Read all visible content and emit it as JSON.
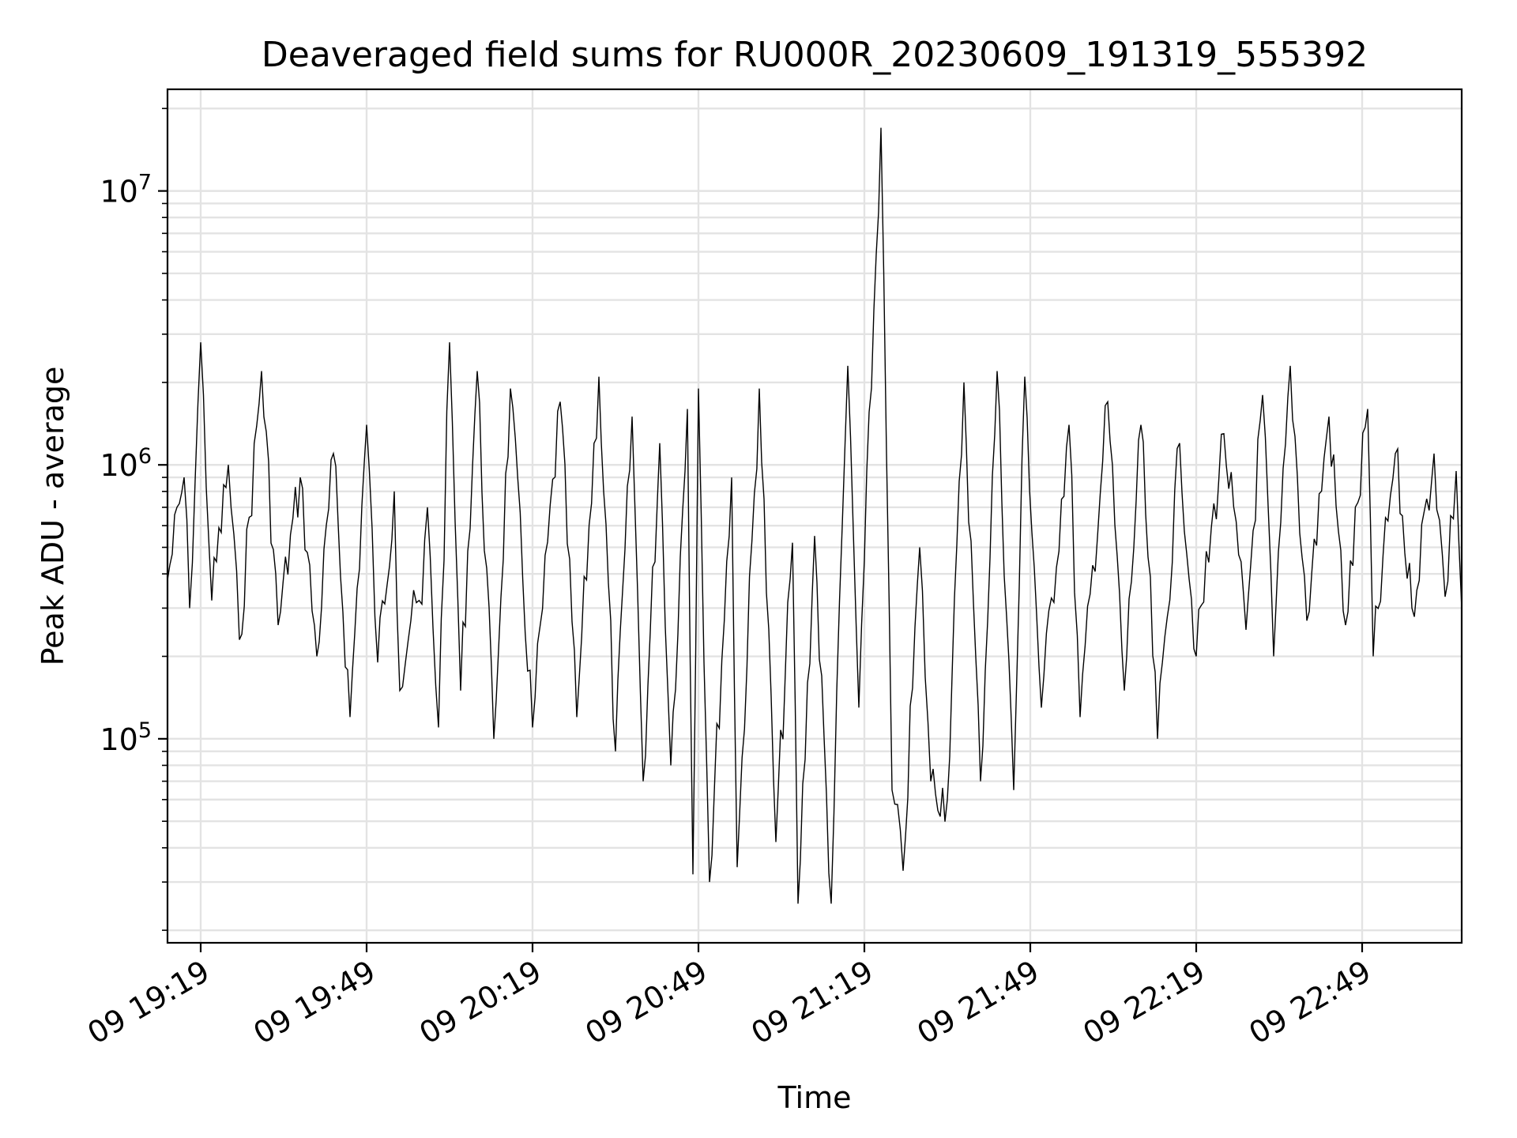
{
  "chart_data": {
    "type": "line",
    "title": "Deaveraged field sums for RU000R_20230609_191319_555392",
    "xlabel": "Time",
    "ylabel": "Peak ADU - average",
    "yscale": "log",
    "ylim": [
      18000,
      23500000
    ],
    "xlim": [
      "2023-06-09 19:13",
      "2023-06-09 23:07"
    ],
    "grid": true,
    "x_ticks": [
      {
        "t": "2023-06-09 19:19",
        "label": "09 19:19"
      },
      {
        "t": "2023-06-09 19:49",
        "label": "09 19:49"
      },
      {
        "t": "2023-06-09 20:19",
        "label": "09 20:19"
      },
      {
        "t": "2023-06-09 20:49",
        "label": "09 20:49"
      },
      {
        "t": "2023-06-09 21:19",
        "label": "09 21:19"
      },
      {
        "t": "2023-06-09 21:49",
        "label": "09 21:49"
      },
      {
        "t": "2023-06-09 22:19",
        "label": "09 22:19"
      },
      {
        "t": "2023-06-09 22:49",
        "label": "09 22:49"
      }
    ],
    "y_ticks": [
      {
        "value": 100000,
        "mantissa": "10",
        "exponent": "5"
      },
      {
        "value": 1000000,
        "mantissa": "10",
        "exponent": "6"
      },
      {
        "value": 10000000,
        "mantissa": "10",
        "exponent": "7"
      }
    ],
    "series": [
      {
        "color": "#000000",
        "points": [
          [
            "2023-06-09 19:13",
            380000
          ],
          [
            "2023-06-09 19:16",
            900000
          ],
          [
            "2023-06-09 19:17",
            300000
          ],
          [
            "2023-06-09 19:19",
            2800000
          ],
          [
            "2023-06-09 19:21",
            320000
          ],
          [
            "2023-06-09 19:24",
            1000000
          ],
          [
            "2023-06-09 19:26",
            230000
          ],
          [
            "2023-06-09 19:30",
            2200000
          ],
          [
            "2023-06-09 19:33",
            260000
          ],
          [
            "2023-06-09 19:37",
            900000
          ],
          [
            "2023-06-09 19:40",
            200000
          ],
          [
            "2023-06-09 19:43",
            1100000
          ],
          [
            "2023-06-09 19:46",
            120000
          ],
          [
            "2023-06-09 19:49",
            1400000
          ],
          [
            "2023-06-09 19:51",
            190000
          ],
          [
            "2023-06-09 19:54",
            800000
          ],
          [
            "2023-06-09 19:55",
            150000
          ],
          [
            "2023-06-09 19:57",
            270000
          ],
          [
            "2023-06-09 19:59",
            310000
          ],
          [
            "2023-06-09 20:00",
            700000
          ],
          [
            "2023-06-09 20:02",
            110000
          ],
          [
            "2023-06-09 20:04",
            2800000
          ],
          [
            "2023-06-09 20:06",
            150000
          ],
          [
            "2023-06-09 20:09",
            2200000
          ],
          [
            "2023-06-09 20:12",
            100000
          ],
          [
            "2023-06-09 20:15",
            1900000
          ],
          [
            "2023-06-09 20:19",
            110000
          ],
          [
            "2023-06-09 20:24",
            1700000
          ],
          [
            "2023-06-09 20:27",
            120000
          ],
          [
            "2023-06-09 20:31",
            2100000
          ],
          [
            "2023-06-09 20:34",
            90000
          ],
          [
            "2023-06-09 20:37",
            1500000
          ],
          [
            "2023-06-09 20:39",
            70000
          ],
          [
            "2023-06-09 20:42",
            1200000
          ],
          [
            "2023-06-09 20:44",
            80000
          ],
          [
            "2023-06-09 20:47",
            1600000
          ],
          [
            "2023-06-09 20:48",
            32000
          ],
          [
            "2023-06-09 20:49",
            1900000
          ],
          [
            "2023-06-09 20:51",
            30000
          ],
          [
            "2023-06-09 20:55",
            900000
          ],
          [
            "2023-06-09 20:56",
            34000
          ],
          [
            "2023-06-09 21:00",
            1900000
          ],
          [
            "2023-06-09 21:03",
            42000
          ],
          [
            "2023-06-09 21:06",
            520000
          ],
          [
            "2023-06-09 21:07",
            25000
          ],
          [
            "2023-06-09 21:10",
            550000
          ],
          [
            "2023-06-09 21:13",
            25000
          ],
          [
            "2023-06-09 21:15",
            600000
          ],
          [
            "2023-06-09 21:16",
            2300000
          ],
          [
            "2023-06-09 21:18",
            130000
          ],
          [
            "2023-06-09 21:19",
            450000
          ],
          [
            "2023-06-09 21:22",
            17000000
          ],
          [
            "2023-06-09 21:24",
            65000
          ],
          [
            "2023-06-09 21:26",
            33000
          ],
          [
            "2023-06-09 21:29",
            500000
          ],
          [
            "2023-06-09 21:31",
            70000
          ],
          [
            "2023-06-09 21:34",
            60000
          ],
          [
            "2023-06-09 21:37",
            2000000
          ],
          [
            "2023-06-09 21:40",
            70000
          ],
          [
            "2023-06-09 21:43",
            2200000
          ],
          [
            "2023-06-09 21:46",
            65000
          ],
          [
            "2023-06-09 21:48",
            2100000
          ],
          [
            "2023-06-09 21:51",
            130000
          ],
          [
            "2023-06-09 21:56",
            1400000
          ],
          [
            "2023-06-09 21:58",
            120000
          ],
          [
            "2023-06-09 22:03",
            1700000
          ],
          [
            "2023-06-09 22:06",
            150000
          ],
          [
            "2023-06-09 22:09",
            1400000
          ],
          [
            "2023-06-09 22:12",
            100000
          ],
          [
            "2023-06-09 22:16",
            1200000
          ],
          [
            "2023-06-09 22:19",
            200000
          ],
          [
            "2023-06-09 22:24",
            1300000
          ],
          [
            "2023-06-09 22:28",
            250000
          ],
          [
            "2023-06-09 22:31",
            1800000
          ],
          [
            "2023-06-09 22:33",
            200000
          ],
          [
            "2023-06-09 22:36",
            2300000
          ],
          [
            "2023-06-09 22:39",
            270000
          ],
          [
            "2023-06-09 22:43",
            1500000
          ],
          [
            "2023-06-09 22:46",
            260000
          ],
          [
            "2023-06-09 22:50",
            1600000
          ],
          [
            "2023-06-09 22:51",
            200000
          ],
          [
            "2023-06-09 22:55",
            1100000
          ],
          [
            "2023-06-09 22:58",
            300000
          ],
          [
            "2023-06-09 23:02",
            1100000
          ],
          [
            "2023-06-09 23:04",
            330000
          ],
          [
            "2023-06-09 23:06",
            950000
          ],
          [
            "2023-06-09 23:07",
            300000
          ]
        ]
      }
    ]
  }
}
